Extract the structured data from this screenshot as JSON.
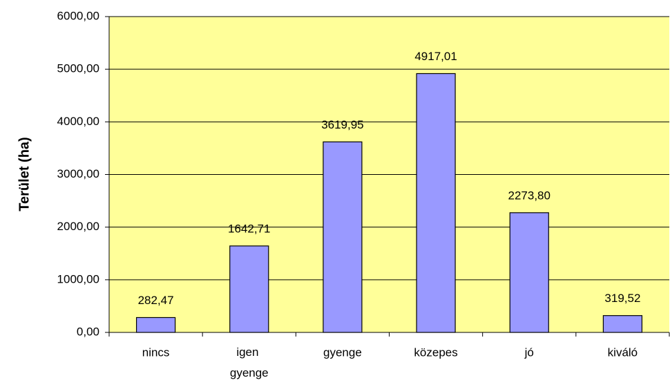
{
  "chart_data": {
    "type": "bar",
    "y_label": "Terület (ha)",
    "categories": [
      "nincs",
      "igen gyenge",
      "gyenge",
      "közepes",
      "jó",
      "kiváló"
    ],
    "values": [
      282.47,
      1642.71,
      3619.95,
      4917.01,
      2273.8,
      319.52
    ],
    "value_labels": [
      "282,47",
      "1642,71",
      "3619,95",
      "4917,01",
      "2273,80",
      "319,52"
    ],
    "color": "#9999ff",
    "plot_background": "#ffff99",
    "ylim": [
      0,
      6000
    ],
    "yticks": [
      {
        "value": 0,
        "label": "0,00"
      },
      {
        "value": 1000,
        "label": "1000,00"
      },
      {
        "value": 2000,
        "label": "2000,00"
      },
      {
        "value": 3000,
        "label": "3000,00"
      },
      {
        "value": 4000,
        "label": "4000,00"
      },
      {
        "value": 5000,
        "label": "5000,00"
      },
      {
        "value": 6000,
        "label": "6000,00"
      }
    ],
    "grid": true
  }
}
